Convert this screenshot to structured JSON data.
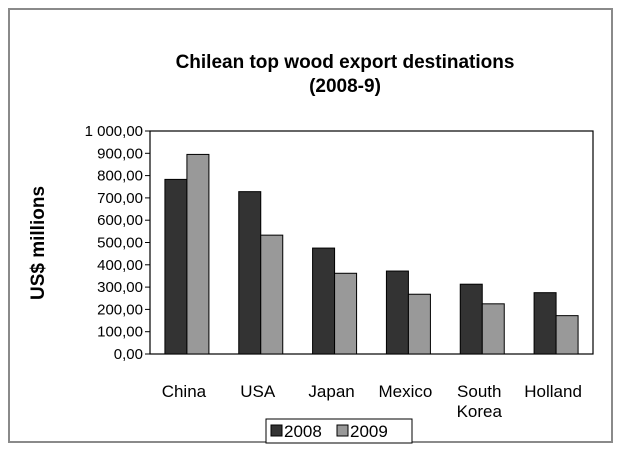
{
  "chart_data": {
    "type": "bar",
    "title": [
      "Chilean top wood export destinations",
      "(2008-9)"
    ],
    "xlabel": "",
    "ylabel": "US$ millions",
    "ylim": [
      0,
      1000
    ],
    "ytick_values": [
      0,
      100,
      200,
      300,
      400,
      500,
      600,
      700,
      800,
      900,
      1000
    ],
    "ytick_labels": [
      "0,00",
      "100,00",
      "200,00",
      "300,00",
      "400,00",
      "500,00",
      "600,00",
      "700,00",
      "800,00",
      "900,00",
      "1 000,00"
    ],
    "categories": [
      [
        "China"
      ],
      [
        "USA"
      ],
      [
        "Japan"
      ],
      [
        "Mexico"
      ],
      [
        "South",
        "Korea"
      ],
      [
        "Holland"
      ]
    ],
    "series": [
      {
        "name": "2008",
        "values": [
          783,
          728,
          475,
          372,
          313,
          275
        ],
        "color": "#333333"
      },
      {
        "name": "2009",
        "values": [
          895,
          533,
          362,
          268,
          225,
          172
        ],
        "color": "#999999"
      }
    ],
    "grid": false,
    "legend": "bottom"
  }
}
